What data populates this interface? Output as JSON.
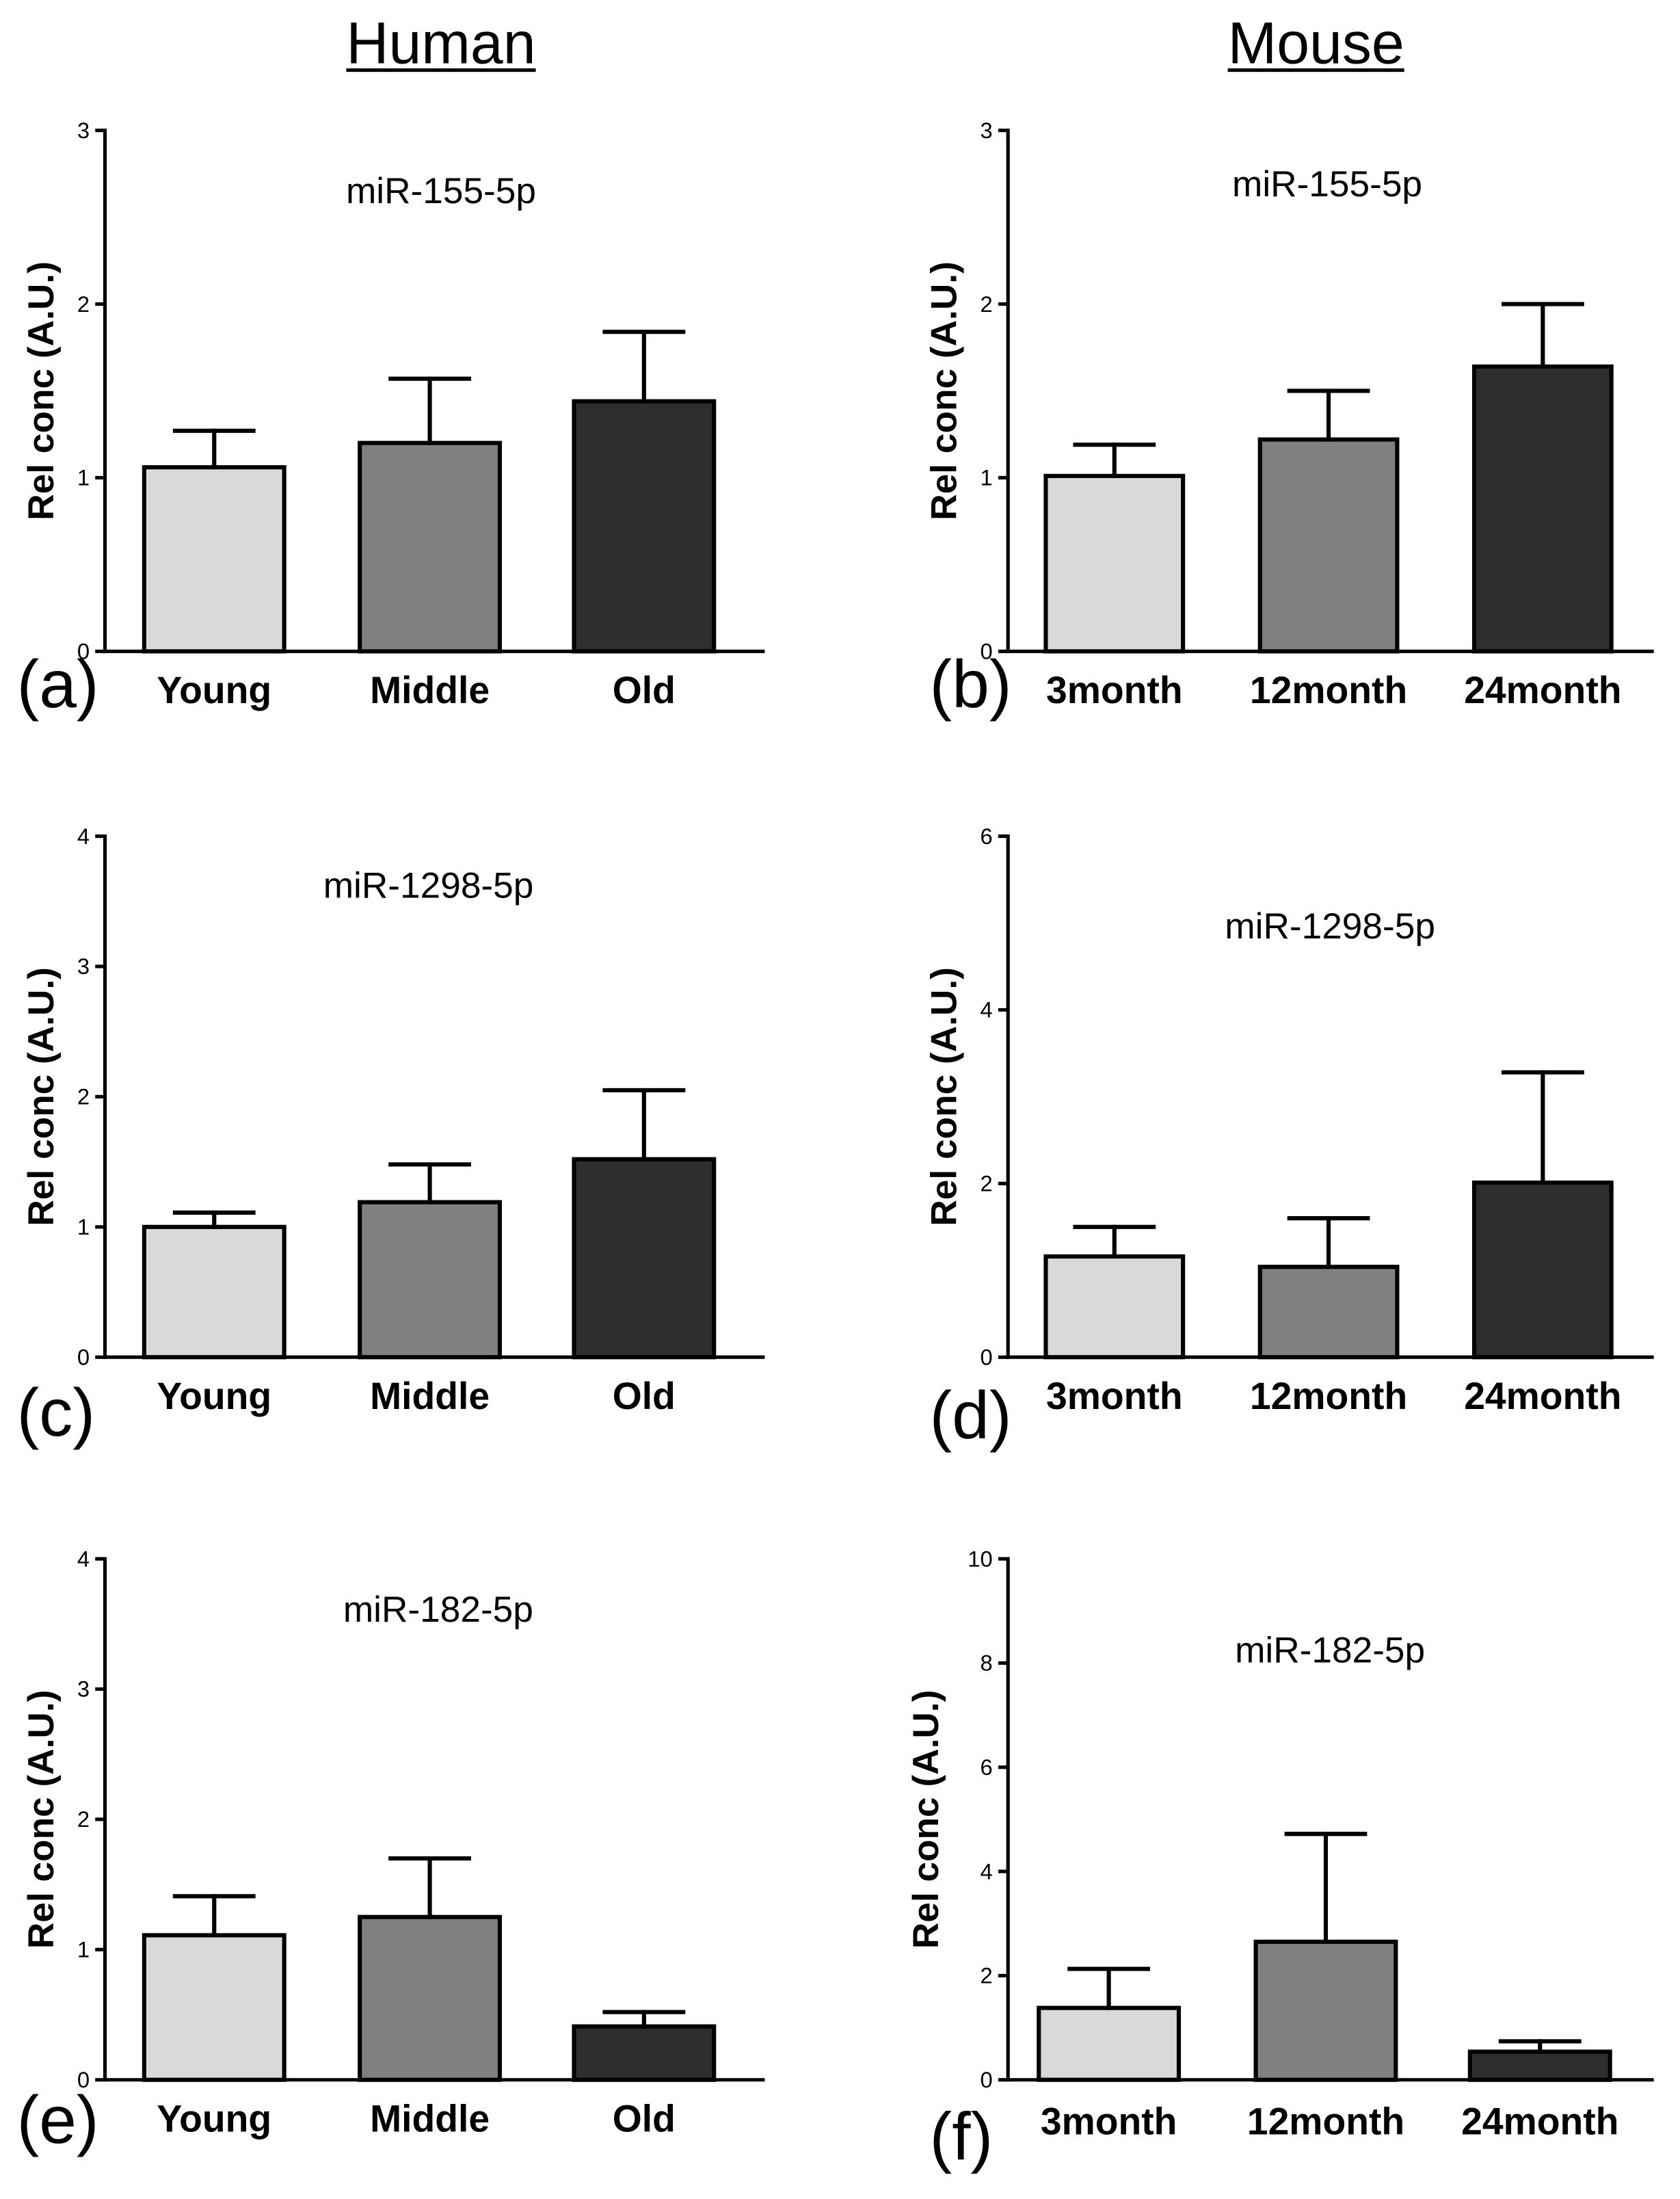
{
  "headers": {
    "human": "Human",
    "mouse": "Mouse"
  },
  "colors": {
    "bar_fills": [
      "#d9d9d9",
      "#808080",
      "#2e2e2e"
    ],
    "outline": "#000000",
    "background": "#ffffff"
  },
  "chart_data": [
    {
      "panel": "(a)",
      "type": "bar",
      "title": "miR-155-5p",
      "xlabel": "",
      "ylabel": "Rel conc (A.U.)",
      "categories": [
        "Young",
        "Middle",
        "Old"
      ],
      "values": [
        1.06,
        1.2,
        1.44
      ],
      "errors": [
        0.21,
        0.37,
        0.4
      ],
      "ylim": [
        0,
        3
      ],
      "yticks": [
        0,
        1,
        2,
        3
      ]
    },
    {
      "panel": "(b)",
      "type": "bar",
      "title": "miR-155-5p",
      "xlabel": "",
      "ylabel": "Rel conc (A.U.)",
      "categories": [
        "3month",
        "12month",
        "24month"
      ],
      "values": [
        1.01,
        1.22,
        1.64
      ],
      "errors": [
        0.18,
        0.28,
        0.36
      ],
      "ylim": [
        0,
        3
      ],
      "yticks": [
        0,
        1,
        2,
        3
      ]
    },
    {
      "panel": "(c)",
      "type": "bar",
      "title": "miR-1298-5p",
      "xlabel": "",
      "ylabel": "Rel conc (A.U.)",
      "categories": [
        "Young",
        "Middle",
        "Old"
      ],
      "values": [
        1.0,
        1.19,
        1.52
      ],
      "errors": [
        0.11,
        0.29,
        0.53
      ],
      "ylim": [
        0,
        4
      ],
      "yticks": [
        0,
        1,
        2,
        3,
        4
      ]
    },
    {
      "panel": "(d)",
      "type": "bar",
      "title": "miR-1298-5p",
      "xlabel": "",
      "ylabel": "Rel conc (A.U.)",
      "categories": [
        "3month",
        "12month",
        "24month"
      ],
      "values": [
        1.16,
        1.04,
        2.01
      ],
      "errors": [
        0.34,
        0.56,
        1.27
      ],
      "ylim": [
        0,
        6
      ],
      "yticks": [
        0,
        2,
        4,
        6
      ]
    },
    {
      "panel": "(e)",
      "type": "bar",
      "title": "miR-182-5p",
      "xlabel": "",
      "ylabel": "Rel conc (A.U.)",
      "categories": [
        "Young",
        "Middle",
        "Old"
      ],
      "values": [
        1.11,
        1.25,
        0.41
      ],
      "errors": [
        0.3,
        0.45,
        0.11
      ],
      "ylim": [
        0,
        4
      ],
      "yticks": [
        0,
        1,
        2,
        3,
        4
      ]
    },
    {
      "panel": "(f)",
      "type": "bar",
      "title": "miR-182-5p",
      "xlabel": "",
      "ylabel": "Rel conc (A.U.)",
      "categories": [
        "3month",
        "12month",
        "24month"
      ],
      "values": [
        1.38,
        2.65,
        0.54
      ],
      "errors": [
        0.75,
        2.07,
        0.2
      ],
      "ylim": [
        0,
        10
      ],
      "yticks": [
        0,
        2,
        4,
        6,
        8,
        10
      ]
    }
  ]
}
